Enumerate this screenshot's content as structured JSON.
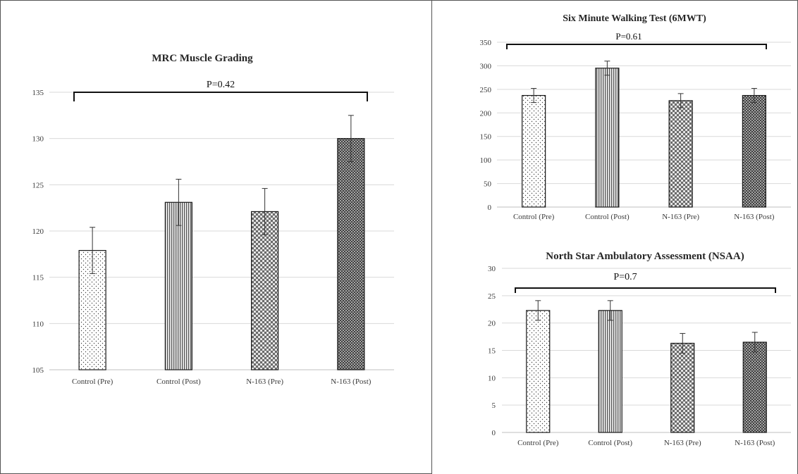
{
  "colors": {
    "gridline": "#d9d9d9",
    "axis": "#bfbfbf",
    "bar_outline": "#1a1a1a",
    "error_bar": "#333333"
  },
  "chart_data": [
    {
      "id": "mrc",
      "type": "bar",
      "title": "MRC Muscle Grading",
      "categories": [
        "Control (Pre)",
        "Control  (Post)",
        "N-163  (Pre)",
        "N-163  (Post)"
      ],
      "values": [
        117.9,
        123.1,
        122.1,
        130.0
      ],
      "error": [
        2.5,
        2.5,
        2.5,
        2.5
      ],
      "patterns": [
        "dots",
        "vertical-stripes",
        "checker",
        "dense-checker"
      ],
      "ylim": [
        105,
        135
      ],
      "yticks": [
        105,
        110,
        115,
        120,
        125,
        130,
        135
      ],
      "grid": true,
      "annotation": "P=0.42",
      "xlabel": "",
      "ylabel": ""
    },
    {
      "id": "sixmwt",
      "type": "bar",
      "title": "Six Minute Walking Test (6MWT)",
      "categories": [
        "Control (Pre)",
        "Control  (Post)",
        "N-163  (Pre)",
        "N-163  (Post)"
      ],
      "values": [
        237,
        295,
        226,
        237
      ],
      "error": [
        15,
        15,
        15,
        15
      ],
      "patterns": [
        "dots",
        "vertical-stripes",
        "checker",
        "dense-checker"
      ],
      "ylim": [
        0,
        350
      ],
      "yticks": [
        0,
        50,
        100,
        150,
        200,
        250,
        300,
        350
      ],
      "grid": true,
      "annotation": "P=0.61",
      "xlabel": "",
      "ylabel": ""
    },
    {
      "id": "nsaa",
      "type": "bar",
      "title": "North Star Ambulatory Assessment (NSAA)",
      "categories": [
        "Control (Pre)",
        "Control  (Post)",
        "N-163  (Pre)",
        "N-163  (Post)"
      ],
      "values": [
        22.3,
        22.3,
        16.3,
        16.5
      ],
      "error": [
        1.8,
        1.8,
        1.8,
        1.8
      ],
      "patterns": [
        "dots",
        "vertical-stripes",
        "checker",
        "dense-checker"
      ],
      "ylim": [
        0,
        30
      ],
      "yticks": [
        0,
        5,
        10,
        15,
        20,
        25,
        30
      ],
      "grid": true,
      "annotation": "P=0.7",
      "xlabel": "",
      "ylabel": ""
    }
  ]
}
